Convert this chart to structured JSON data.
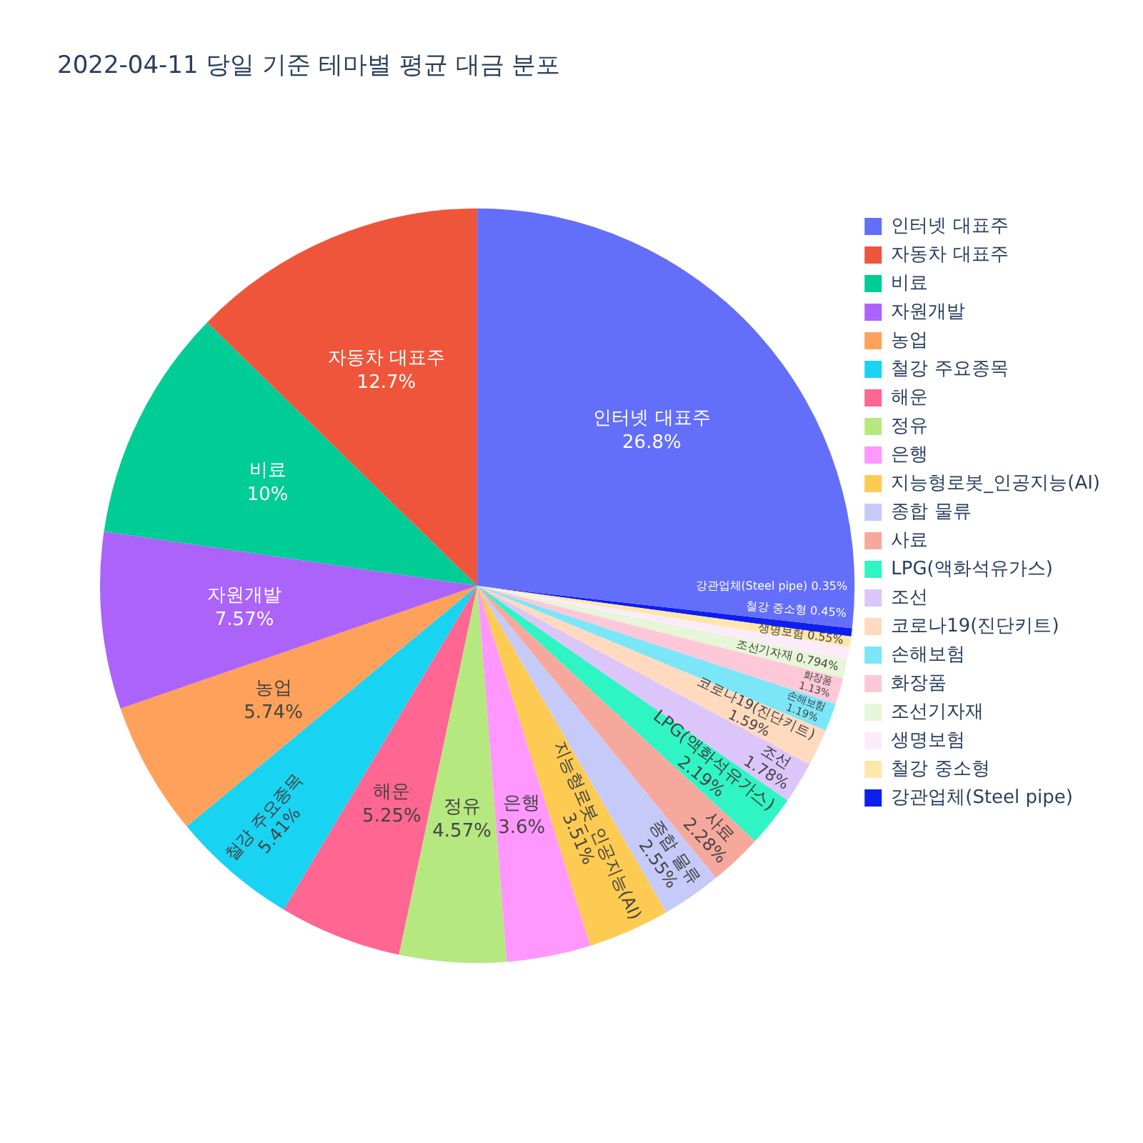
{
  "chart_data": {
    "type": "pie",
    "title": "2022-04-11 당일 기준 테마별 평균 대금 분포",
    "categories": [
      "인터넷 대표주",
      "자동차 대표주",
      "비료",
      "자원개발",
      "농업",
      "철강 주요종목",
      "해운",
      "정유",
      "은행",
      "지능형로봇_인공지능(AI)",
      "종합 물류",
      "사료",
      "LPG(액화석유가스)",
      "조선",
      "코로나19(진단키트)",
      "손해보험",
      "화장품",
      "조선기자재",
      "생명보험",
      "철강 중소형",
      "강관업체(Steel pipe)"
    ],
    "values": [
      26.8,
      12.7,
      10,
      7.57,
      5.74,
      5.41,
      5.25,
      4.57,
      3.6,
      3.51,
      2.55,
      2.28,
      2.19,
      1.78,
      1.59,
      1.19,
      1.13,
      0.794,
      0.55,
      0.45,
      0.35
    ],
    "value_labels": [
      "26.8%",
      "12.7%",
      "10%",
      "7.57%",
      "5.74%",
      "5.41%",
      "5.25%",
      "4.57%",
      "3.6%",
      "3.51%",
      "2.55%",
      "2.28%",
      "2.19%",
      "1.78%",
      "1.59%",
      "1.19%",
      "1.13%",
      "0.794%",
      "0.55%",
      "0.45%",
      "0.35%"
    ],
    "colors": [
      "#636efa",
      "#ef553b",
      "#00cc96",
      "#ab63fa",
      "#ffa15a",
      "#19d3f3",
      "#ff6692",
      "#b6e880",
      "#ff97ff",
      "#fecb52",
      "#c6caf9",
      "#f7a89c",
      "#2ff5c4",
      "#dcc6f9",
      "#ffdabf",
      "#7ae6f8",
      "#ffc8d9",
      "#e7f5d8",
      "#fcecf9",
      "#ffe6aa",
      "#0d1ff0"
    ],
    "legend": "top right"
  }
}
